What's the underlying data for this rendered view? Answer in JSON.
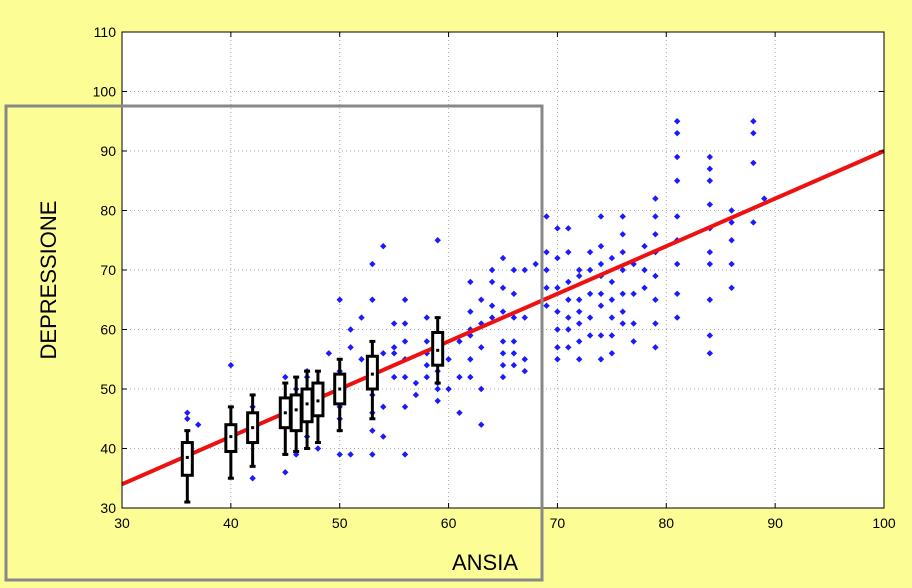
{
  "chart_data": {
    "type": "scatter",
    "title": "",
    "xlabel": "ANSIA",
    "ylabel": "DEPRESSIONE",
    "xlim": [
      30,
      100
    ],
    "ylim": [
      30,
      110
    ],
    "xticks": [
      30,
      40,
      50,
      60,
      70,
      80,
      90,
      100
    ],
    "yticks": [
      30,
      40,
      50,
      60,
      70,
      80,
      90,
      100,
      110
    ],
    "grid": true,
    "colors": {
      "background": "#fdfd96",
      "plot_area": "#ffffff",
      "points": "#1a1aff",
      "regression_line": "#ee1111",
      "boxes": "#000000",
      "highlight_rect": "#888888"
    },
    "regression_line": {
      "x": [
        30,
        100
      ],
      "y": [
        34,
        90
      ]
    },
    "series": [
      {
        "x": [
          36,
          37,
          36,
          40,
          40,
          42,
          42,
          42,
          45,
          45,
          45,
          46,
          46,
          46,
          47,
          47,
          47,
          47,
          48,
          48,
          48,
          49,
          50,
          50,
          50,
          50,
          50,
          50,
          51,
          51,
          51,
          52,
          52,
          53,
          53,
          53,
          53,
          53,
          53,
          53,
          54,
          54,
          54,
          54,
          55,
          55,
          55,
          55,
          56,
          56,
          56,
          56,
          56,
          56,
          56,
          57,
          57,
          58,
          58,
          58,
          58,
          58,
          59,
          59,
          59,
          59,
          59,
          59,
          59,
          59,
          60,
          60,
          61,
          61,
          61,
          62,
          62,
          62,
          62,
          62,
          62,
          63,
          63,
          63,
          63,
          63,
          64,
          64,
          64,
          64,
          65,
          65,
          65,
          65,
          65,
          65,
          65,
          66,
          66,
          66,
          66,
          66,
          66,
          67,
          67,
          67,
          67,
          68,
          69,
          69,
          69,
          69,
          69,
          70,
          70,
          70,
          70,
          70,
          70,
          70,
          71,
          71,
          71,
          71,
          71,
          71,
          71,
          72,
          72,
          72,
          72,
          72,
          72,
          72,
          73,
          73,
          73,
          73,
          73,
          74,
          74,
          74,
          74,
          74,
          74,
          74,
          74,
          75,
          75,
          75,
          75,
          75,
          75,
          76,
          76,
          76,
          76,
          76,
          76,
          76,
          77,
          77,
          77,
          77,
          78,
          78,
          78,
          79,
          79,
          79,
          79,
          79,
          79,
          79,
          79,
          81,
          81,
          81,
          81,
          81,
          81,
          81,
          81,
          81,
          84,
          84,
          84,
          84,
          84,
          84,
          84,
          84,
          84,
          84,
          86,
          86,
          86,
          86,
          86,
          88,
          88,
          88,
          88,
          89
        ],
        "y": [
          46,
          44,
          45,
          54,
          42,
          35,
          41,
          47,
          36,
          44,
          52,
          39,
          48,
          50,
          42,
          46,
          52,
          53,
          40,
          49,
          51,
          56,
          39,
          45,
          47,
          51,
          53,
          65,
          39,
          57,
          60,
          55,
          62,
          39,
          43,
          46,
          49,
          52,
          65,
          71,
          42,
          47,
          56,
          74,
          52,
          61,
          57,
          56,
          39,
          47,
          52,
          55,
          58,
          61,
          65,
          49,
          51,
          54,
          52,
          56,
          58,
          62,
          48,
          51,
          53,
          50,
          55,
          57,
          59,
          75,
          50,
          55,
          46,
          52,
          58,
          52,
          55,
          60,
          63,
          68,
          59,
          44,
          50,
          57,
          61,
          65,
          62,
          64,
          68,
          70,
          52,
          54,
          56,
          58,
          63,
          67,
          72,
          54,
          56,
          58,
          62,
          66,
          70,
          53,
          55,
          62,
          70,
          71,
          64,
          67,
          70,
          73,
          79,
          55,
          57,
          60,
          63,
          67,
          72,
          77,
          57,
          60,
          62,
          65,
          68,
          73,
          77,
          55,
          58,
          61,
          63,
          65,
          69,
          70,
          59,
          62,
          66,
          70,
          73,
          55,
          59,
          64,
          66,
          69,
          71,
          74,
          79,
          56,
          59,
          62,
          65,
          68,
          72,
          61,
          63,
          66,
          70,
          73,
          76,
          79,
          58,
          61,
          66,
          71,
          67,
          70,
          74,
          57,
          61,
          65,
          69,
          73,
          76,
          79,
          82,
          62,
          66,
          71,
          75,
          79,
          85,
          89,
          93,
          95,
          56,
          59,
          65,
          71,
          73,
          77,
          81,
          85,
          87,
          89,
          67,
          71,
          75,
          78,
          80,
          78,
          88,
          93,
          95,
          82
        ]
      }
    ],
    "box_plots": [
      {
        "x": 36,
        "min": 31,
        "q1": 35.5,
        "median": 38.5,
        "q3": 41,
        "max": 43
      },
      {
        "x": 40,
        "min": 35,
        "q1": 39.5,
        "median": 42,
        "q3": 44,
        "max": 47
      },
      {
        "x": 42,
        "min": 37,
        "q1": 41,
        "median": 43.5,
        "q3": 46,
        "max": 49
      },
      {
        "x": 45,
        "min": 39,
        "q1": 43.5,
        "median": 46,
        "q3": 48.5,
        "max": 51
      },
      {
        "x": 46,
        "min": 39.5,
        "q1": 43,
        "median": 46.5,
        "q3": 49,
        "max": 52
      },
      {
        "x": 47,
        "min": 40,
        "q1": 44.5,
        "median": 47.5,
        "q3": 50,
        "max": 53
      },
      {
        "x": 48,
        "min": 41,
        "q1": 45.5,
        "median": 48,
        "q3": 51,
        "max": 53
      },
      {
        "x": 50,
        "min": 43,
        "q1": 47.5,
        "median": 50,
        "q3": 52.5,
        "max": 55
      },
      {
        "x": 53,
        "min": 45,
        "q1": 50,
        "median": 52.5,
        "q3": 55.5,
        "max": 58
      },
      {
        "x": 59,
        "min": 51,
        "q1": 54,
        "median": 56.5,
        "q3": 59.5,
        "max": 62
      }
    ]
  }
}
